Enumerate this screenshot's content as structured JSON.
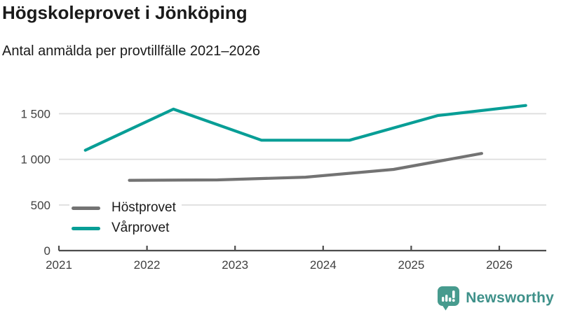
{
  "header": {
    "title": "Högskoleprovet i Jönköping",
    "subtitle": "Antal anmälda per provtillfälle 2021–2026"
  },
  "chart_data": {
    "type": "line",
    "title": "Högskoleprovet i Jönköping",
    "subtitle": "Antal anmälda per provtillfälle 2021–2026",
    "grid": true,
    "legend_position": "inside-bottom-left",
    "xlim": [
      2021,
      2026.6
    ],
    "ylim": [
      0,
      1650
    ],
    "x_ticks": [
      2021,
      2022,
      2023,
      2024,
      2025,
      2026
    ],
    "y_ticks": [
      {
        "value": 0,
        "label": "0"
      },
      {
        "value": 500,
        "label": "500"
      },
      {
        "value": 1000,
        "label": "1 000"
      },
      {
        "value": 1500,
        "label": "1 500"
      }
    ],
    "series": [
      {
        "name": "Höstprovet",
        "color": "#737373",
        "x": [
          2021.8,
          2022.8,
          2023.8,
          2024.8,
          2025.8
        ],
        "values": [
          770,
          775,
          805,
          890,
          1065
        ]
      },
      {
        "name": "Vårprovet",
        "color": "#089e96",
        "x": [
          2021.3,
          2022.3,
          2023.3,
          2024.3,
          2025.3,
          2026.3
        ],
        "values": [
          1100,
          1550,
          1210,
          1210,
          1480,
          1590
        ]
      }
    ]
  },
  "colors": {
    "axis_line": "#4d4d4d",
    "axis_text": "#404040",
    "grid_line": "#dedede",
    "brand_teal": "#479b8e"
  },
  "footer": {
    "brand": "Newsworthy"
  }
}
